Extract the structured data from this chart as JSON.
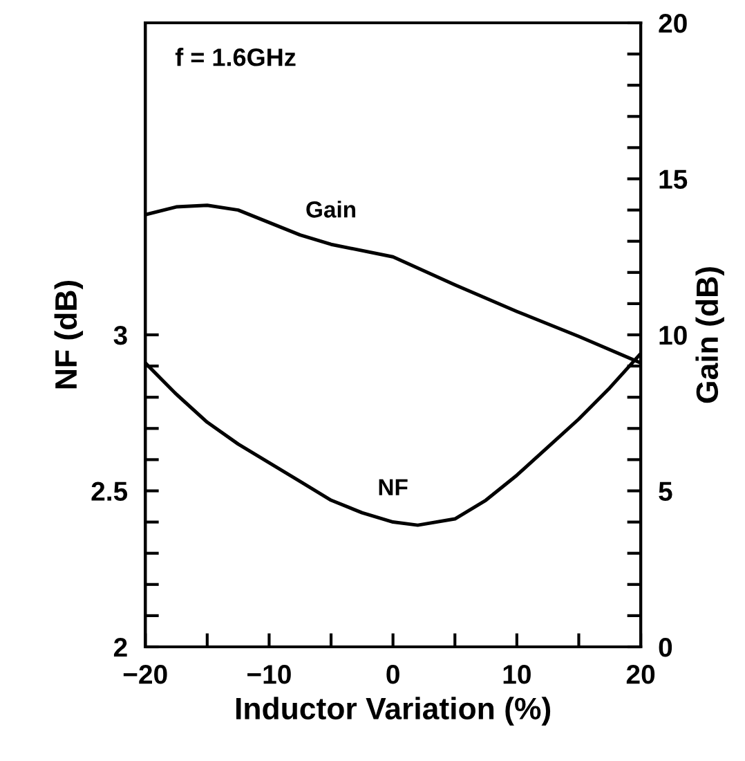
{
  "chart_data": {
    "type": "line",
    "xlabel": "Inductor Variation (%)",
    "ylabel": "NF (dB)",
    "y2label": "Gain (dB)",
    "annotations": [
      "f = 1.6GHz"
    ],
    "series": [
      {
        "name": "Gain",
        "color": "#000000",
        "axis": "y2",
        "x": [
          -20,
          -17.5,
          -15,
          -12.5,
          -10,
          -7.5,
          -5,
          0,
          5,
          10,
          15,
          20
        ],
        "values": [
          13.85,
          14.1,
          14.15,
          14.0,
          13.6,
          13.2,
          12.9,
          12.5,
          11.6,
          10.75,
          9.95,
          9.1
        ]
      },
      {
        "name": "NF",
        "color": "#000000",
        "x": [
          -20,
          -17.5,
          -15,
          -12.5,
          -10,
          -7.5,
          -5,
          -2.5,
          0,
          2,
          5,
          7.5,
          10,
          12.5,
          15,
          17.5,
          20
        ],
        "values": [
          2.91,
          2.81,
          2.72,
          2.65,
          2.59,
          2.53,
          2.47,
          2.43,
          2.4,
          2.39,
          2.41,
          2.47,
          2.55,
          2.64,
          2.73,
          2.83,
          2.94
        ]
      }
    ],
    "xlim": [
      -20,
      20
    ],
    "xticks": [
      -20,
      {
        "value": -15,
        "label": null
      },
      -10,
      {
        "value": -5,
        "label": null
      },
      0,
      {
        "value": 5,
        "label": null
      },
      10,
      {
        "value": 15,
        "label": null
      },
      20
    ],
    "ylim": [
      2,
      4
    ],
    "yticks": [
      2,
      {
        "value": 2.1,
        "label": null
      },
      {
        "value": 2.2,
        "label": null
      },
      {
        "value": 2.3,
        "label": null
      },
      {
        "value": 2.4,
        "label": null
      },
      2.5,
      {
        "value": 2.6,
        "label": null
      },
      {
        "value": 2.7,
        "label": null
      },
      {
        "value": 2.8,
        "label": null
      },
      {
        "value": 2.9,
        "label": null
      },
      3
    ],
    "y2lim": [
      0,
      20
    ],
    "y2ticks": [
      0,
      {
        "value": 1,
        "label": null
      },
      {
        "value": 2,
        "label": null
      },
      {
        "value": 3,
        "label": null
      },
      {
        "value": 4,
        "label": null
      },
      5,
      {
        "value": 6,
        "label": null
      },
      {
        "value": 7,
        "label": null
      },
      {
        "value": 8,
        "label": null
      },
      {
        "value": 9,
        "label": null
      },
      10,
      {
        "value": 11,
        "label": null
      },
      {
        "value": 12,
        "label": null
      },
      {
        "value": 13,
        "label": null
      },
      {
        "value": 14,
        "label": null
      },
      15,
      {
        "value": 16,
        "label": null
      },
      {
        "value": 17,
        "label": null
      },
      {
        "value": 18,
        "label": null
      },
      {
        "value": 19,
        "label": null
      },
      20
    ],
    "grid": false,
    "legend": false,
    "marker": "none",
    "line_style": "solid"
  }
}
